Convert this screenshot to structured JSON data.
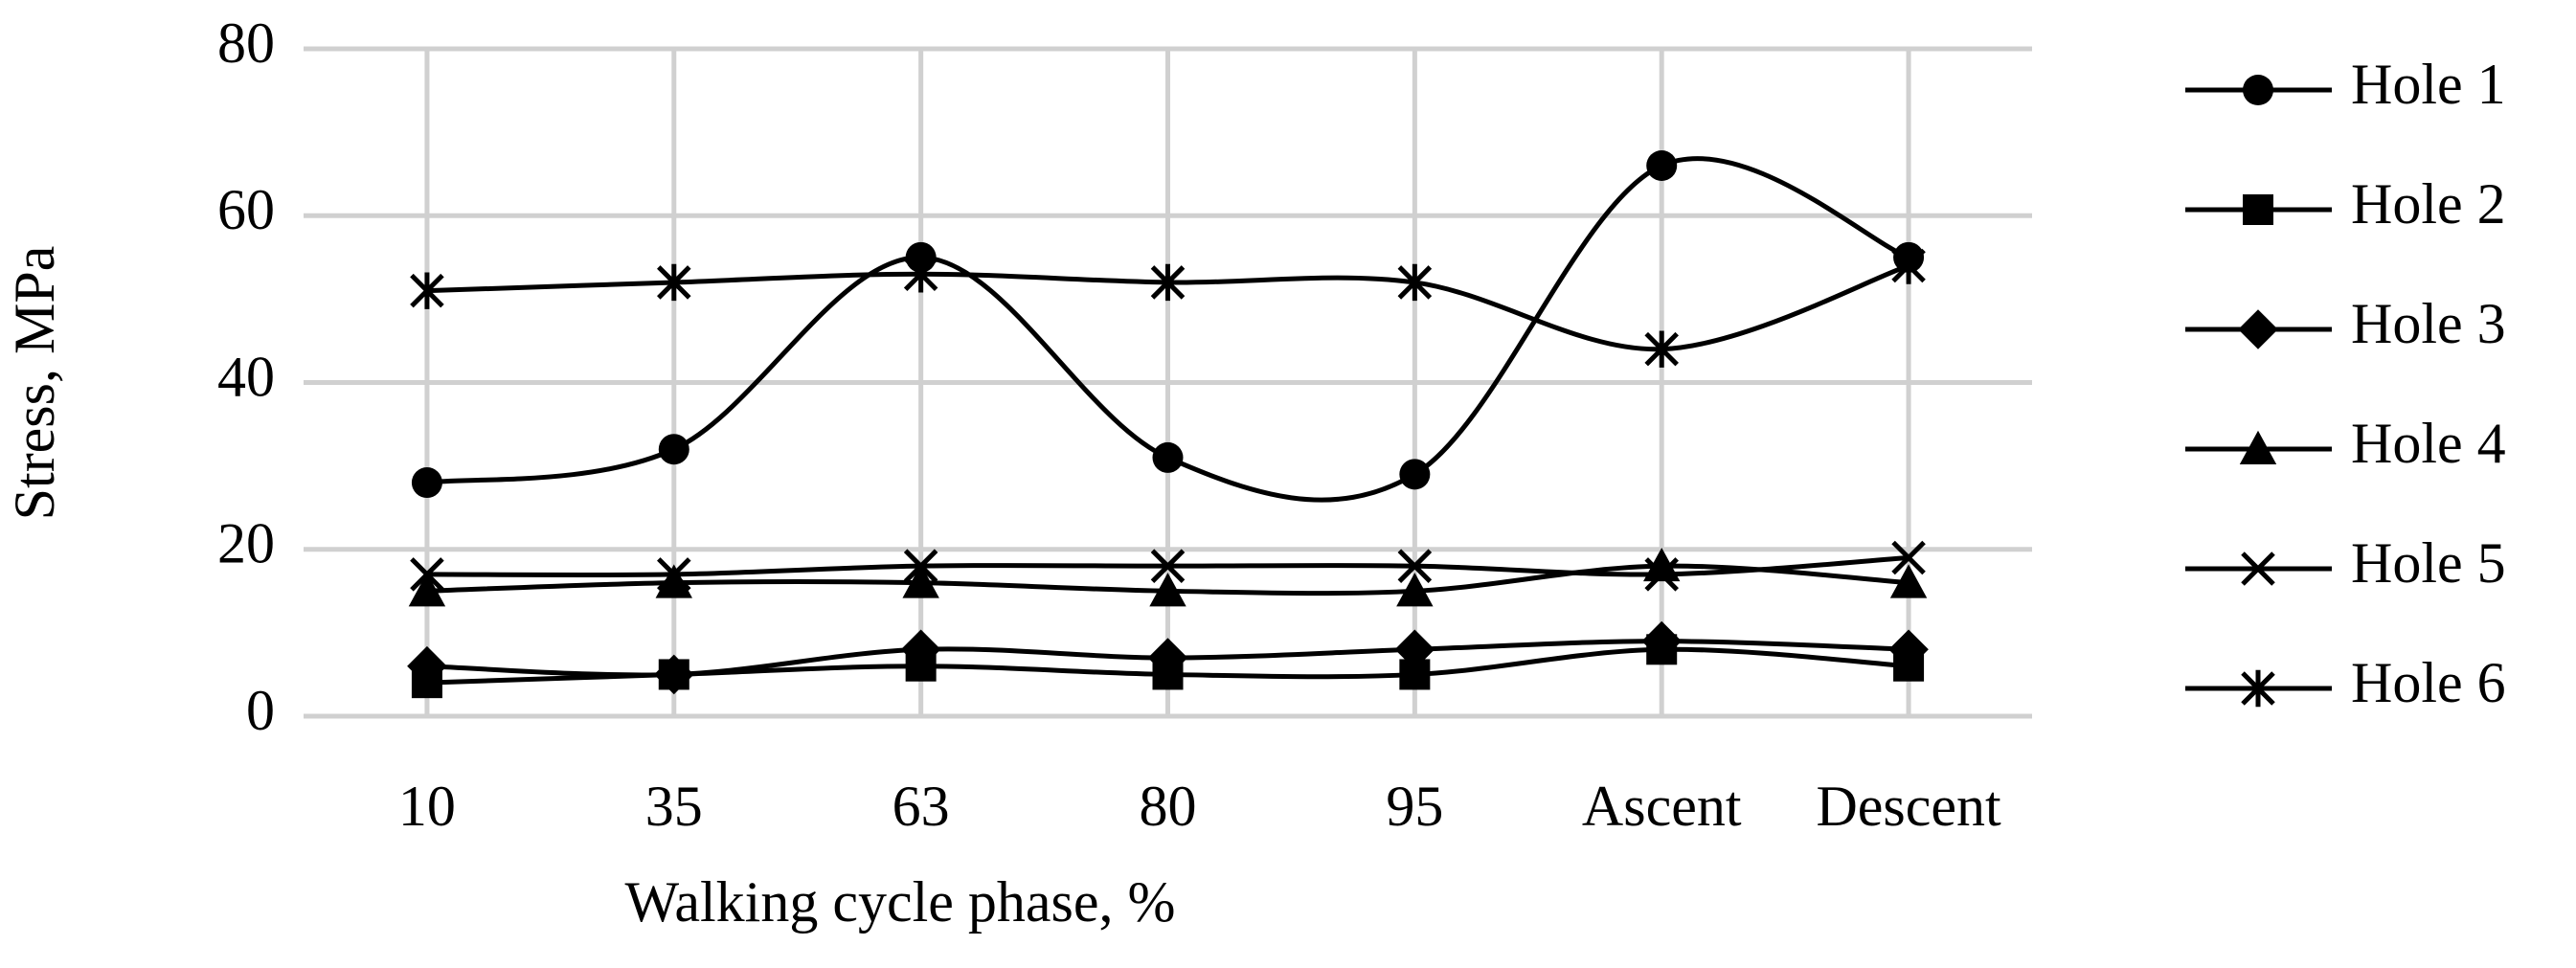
{
  "chart_data": {
    "type": "line",
    "smooth": true,
    "x_label": "Walking cycle phase, %",
    "y_label": "Stress, MPa",
    "categories": [
      "10",
      "35",
      "63",
      "80",
      "95",
      "Ascent",
      "Descent"
    ],
    "ylim": [
      0,
      80
    ],
    "yticks": [
      0,
      20,
      40,
      60,
      80
    ],
    "grid": true,
    "legend": "right",
    "series": [
      {
        "name": "Hole 1",
        "color": "#000000",
        "marker": "circle",
        "values": [
          28,
          32,
          55,
          31,
          29,
          66,
          55
        ]
      },
      {
        "name": "Hole 2",
        "color": "#000000",
        "marker": "square",
        "values": [
          4,
          5,
          6,
          5,
          5,
          8,
          6
        ]
      },
      {
        "name": "Hole 3",
        "color": "#000000",
        "marker": "diamond",
        "values": [
          6,
          5,
          8,
          7,
          8,
          9,
          8
        ]
      },
      {
        "name": "Hole 4",
        "color": "#000000",
        "marker": "triangle",
        "values": [
          15,
          16,
          16,
          15,
          15,
          18,
          16
        ]
      },
      {
        "name": "Hole 5",
        "color": "#000000",
        "marker": "x",
        "values": [
          17,
          17,
          18,
          18,
          18,
          17,
          19
        ]
      },
      {
        "name": "Hole 6",
        "color": "#000000",
        "marker": "star",
        "values": [
          51,
          52,
          53,
          52,
          52,
          44,
          54
        ]
      }
    ]
  }
}
